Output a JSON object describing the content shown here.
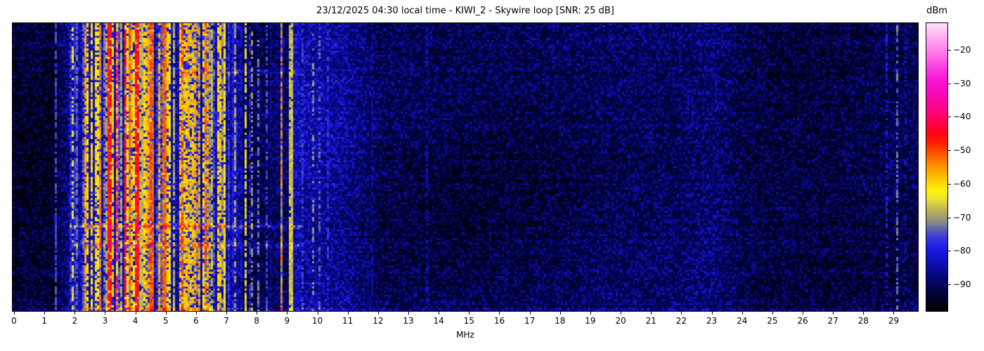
{
  "header": {
    "title": "23/12/2025 04:30 local time - KIWI_2 - Skywire loop [SNR: 25 dB]"
  },
  "x_axis": {
    "unit": "MHz",
    "ticks": [
      {
        "v": 0,
        "label": "0"
      },
      {
        "v": 1,
        "label": "1"
      },
      {
        "v": 2,
        "label": "2"
      },
      {
        "v": 3,
        "label": "3"
      },
      {
        "v": 4,
        "label": "4"
      },
      {
        "v": 5,
        "label": "5"
      },
      {
        "v": 6,
        "label": "6"
      },
      {
        "v": 7,
        "label": "7"
      },
      {
        "v": 8,
        "label": "8"
      },
      {
        "v": 9,
        "label": "9"
      },
      {
        "v": 10,
        "label": "10"
      },
      {
        "v": 11,
        "label": "11"
      },
      {
        "v": 12,
        "label": "12"
      },
      {
        "v": 13,
        "label": "13"
      },
      {
        "v": 14,
        "label": "14"
      },
      {
        "v": 15,
        "label": "15"
      },
      {
        "v": 16,
        "label": "16"
      },
      {
        "v": 17,
        "label": "17"
      },
      {
        "v": 18,
        "label": "18"
      },
      {
        "v": 19,
        "label": "19"
      },
      {
        "v": 20,
        "label": "20"
      },
      {
        "v": 21,
        "label": "21"
      },
      {
        "v": 22,
        "label": "22"
      },
      {
        "v": 23,
        "label": "23"
      },
      {
        "v": 24,
        "label": "24"
      },
      {
        "v": 25,
        "label": "25"
      },
      {
        "v": 26,
        "label": "26"
      },
      {
        "v": 27,
        "label": "27"
      },
      {
        "v": 28,
        "label": "28"
      },
      {
        "v": 29,
        "label": "29"
      }
    ]
  },
  "colorbar": {
    "unit": "dBm",
    "vtop": -12,
    "vbottom": -98,
    "ticks": [
      {
        "v": -20,
        "label": "−20"
      },
      {
        "v": -30,
        "label": "−30"
      },
      {
        "v": -40,
        "label": "−40"
      },
      {
        "v": -50,
        "label": "−50"
      },
      {
        "v": -60,
        "label": "−60"
      },
      {
        "v": -70,
        "label": "−70"
      },
      {
        "v": -80,
        "label": "−80"
      },
      {
        "v": -90,
        "label": "−90"
      }
    ]
  },
  "chart_data": {
    "type": "heatmap",
    "subtype": "hf-spectrogram-waterfall",
    "title": "23/12/2025 04:30 local time - KIWI_2 - Skywire loop [SNR: 25 dB]",
    "xlabel": "MHz",
    "value_label": "dBm",
    "x_range_mhz": [
      0,
      29.8
    ],
    "value_range_dbm": [
      -98,
      -12
    ],
    "time_axis": "vertical-unlabeled",
    "seed": 1234,
    "colormap_stops": [
      [
        -98,
        "#000000"
      ],
      [
        -94,
        "#01012c"
      ],
      [
        -90,
        "#04045c"
      ],
      [
        -86,
        "#0a0a94"
      ],
      [
        -82,
        "#1212ca"
      ],
      [
        -79,
        "#1d1de8"
      ],
      [
        -76,
        "#3b3bdc"
      ],
      [
        -73.5,
        "#6161b0"
      ],
      [
        -71.5,
        "#8a8a8a"
      ],
      [
        -69.5,
        "#a6a16a"
      ],
      [
        -67,
        "#c9be4c"
      ],
      [
        -64.5,
        "#ece435"
      ],
      [
        -62,
        "#fdf407"
      ],
      [
        -60,
        "#ffd802"
      ],
      [
        -57,
        "#ffb201"
      ],
      [
        -54,
        "#ff8500"
      ],
      [
        -51,
        "#ff5600"
      ],
      [
        -48,
        "#ff2200"
      ],
      [
        -45,
        "#ff0318"
      ],
      [
        -41,
        "#ff0256"
      ],
      [
        -37,
        "#fc038e"
      ],
      [
        -33,
        "#f907b8"
      ],
      [
        -29,
        "#f815d3"
      ],
      [
        -25,
        "#fa40e0"
      ],
      [
        -21,
        "#ff75ea"
      ],
      [
        -16,
        "#ffaef2"
      ],
      [
        -12,
        "#ffe2fb"
      ]
    ],
    "noise_floor_profile": [
      [
        0,
        -94.5
      ],
      [
        1.3,
        -94.5
      ],
      [
        1.45,
        -92
      ],
      [
        1.8,
        -88
      ],
      [
        2.0,
        -85.5
      ],
      [
        2.6,
        -83.5
      ],
      [
        7.4,
        -83.5
      ],
      [
        7.52,
        -91
      ],
      [
        8.62,
        -90.5
      ],
      [
        9.15,
        -90.5
      ],
      [
        9.25,
        -84
      ],
      [
        9.6,
        -85.5
      ],
      [
        10.4,
        -86.5
      ],
      [
        11.2,
        -88.5
      ],
      [
        12.0,
        -92
      ],
      [
        22.0,
        -92.4
      ],
      [
        29.77,
        -92.2
      ]
    ],
    "quiet_band_bump": {
      "center_mhz": 22.9,
      "boost_db": 2.3,
      "sigma_mhz": 0.55
    },
    "bands": [
      {
        "f0": 1.33,
        "f1": 1.52,
        "p": 0.35,
        "lmin": -80,
        "lmax": -74,
        "dash": 0.3
      },
      {
        "f0": 1.8,
        "f1": 2.12,
        "p": 0.55,
        "lmin": -79,
        "lmax": -62,
        "dash": 0.3
      },
      {
        "f0": 2.2,
        "f1": 2.6,
        "p": 0.55,
        "lmin": -79,
        "lmax": -60,
        "dash": 0.3
      },
      {
        "f0": 2.6,
        "f1": 5.15,
        "p": 0.78,
        "lmin": -77,
        "lmax": -51,
        "dash": 0.25
      },
      {
        "f0": 5.15,
        "f1": 6.45,
        "p": 0.68,
        "lmin": -78,
        "lmax": -55,
        "dash": 0.3
      },
      {
        "f0": 6.45,
        "f1": 7.12,
        "p": 0.62,
        "lmin": -78,
        "lmax": -58,
        "dash": 0.3
      },
      {
        "f0": 7.12,
        "f1": 7.5,
        "p": 0.5,
        "lmin": -83,
        "lmax": -69,
        "dash": 0.35
      },
      {
        "f0": 7.55,
        "f1": 8.6,
        "p": 0.17,
        "lmin": -87,
        "lmax": -75,
        "dash": 0.5
      },
      {
        "f0": 8.62,
        "f1": 9.2,
        "p": 0.15,
        "lmin": -87,
        "lmax": -78,
        "dash": 0.5
      },
      {
        "f0": 9.25,
        "f1": 10.35,
        "p": 0.12,
        "lmin": -81,
        "lmax": -73,
        "dash": 0.55
      }
    ],
    "stations": [
      {
        "f": 1.87,
        "level": -65,
        "dash": 0.45,
        "w": 1
      },
      {
        "f": 2.3,
        "level": -56,
        "dash": 0.2,
        "w": 1
      },
      {
        "f": 2.37,
        "level": -61,
        "dash": 0.3,
        "w": 1
      },
      {
        "f": 3.08,
        "level": -47,
        "dash": 0.12,
        "w": 1
      },
      {
        "f": 3.17,
        "level": -44,
        "dash": 0.18,
        "w": 1
      },
      {
        "f": 3.35,
        "level": -37,
        "dash": 0.6,
        "w": 1
      },
      {
        "f": 3.62,
        "level": -47,
        "dash": 0.2,
        "w": 1
      },
      {
        "f": 3.79,
        "level": -51,
        "dash": 0.3,
        "w": 1
      },
      {
        "f": 3.97,
        "level": -46,
        "dash": 0.12,
        "w": 2
      },
      {
        "f": 4.15,
        "level": -68,
        "dash": 0.1,
        "w": 2
      },
      {
        "f": 4.32,
        "level": -58,
        "dash": 0.25,
        "w": 1
      },
      {
        "f": 4.47,
        "level": -50,
        "dash": 0.3,
        "w": 1
      },
      {
        "f": 4.78,
        "level": -57,
        "dash": 0.35,
        "w": 1
      },
      {
        "f": 5.0,
        "level": -60,
        "dash": 0.3,
        "w": 1
      },
      {
        "f": 5.51,
        "level": -49,
        "dash": 0.5,
        "w": 1
      },
      {
        "f": 5.85,
        "level": -58,
        "dash": 0.3,
        "w": 1
      },
      {
        "f": 6.1,
        "level": -56,
        "dash": 0.35,
        "w": 1
      },
      {
        "f": 6.3,
        "level": -50,
        "dash": 0.5,
        "w": 1
      },
      {
        "f": 6.68,
        "level": -60,
        "dash": 0.3,
        "w": 1
      },
      {
        "f": 6.92,
        "level": -63,
        "dash": 0.15,
        "w": 1
      },
      {
        "f": 7.25,
        "level": -70,
        "dash": 0.4,
        "w": 1
      },
      {
        "f": 7.62,
        "level": -66,
        "dash": 0.3,
        "w": 1
      },
      {
        "f": 7.78,
        "level": -71,
        "dash": 0.4,
        "w": 1
      },
      {
        "f": 8.0,
        "level": -72,
        "dash": 0.45,
        "w": 1
      },
      {
        "f": 8.8,
        "level": -53,
        "dash": 0.6,
        "w": 1
      },
      {
        "f": 9.03,
        "level": -67,
        "dash": 0.05,
        "w": 2
      },
      {
        "f": 9.45,
        "level": -76,
        "dash": 0.5,
        "w": 1
      },
      {
        "f": 9.8,
        "level": -71,
        "dash": 0.65,
        "w": 1
      },
      {
        "f": 11.8,
        "level": -85,
        "dash": 0.5,
        "w": 1
      },
      {
        "f": 13.6,
        "level": -83,
        "dash": 0.55,
        "w": 1
      },
      {
        "f": 16.2,
        "level": -88,
        "dash": 0.5,
        "w": 1
      },
      {
        "f": 28.7,
        "level": -80,
        "dash": 0.55,
        "w": 1
      },
      {
        "f": 29.05,
        "level": -73,
        "dash": 0.45,
        "w": 1
      },
      {
        "f": 29.35,
        "level": -83,
        "dash": 0.6,
        "w": 1
      }
    ],
    "bursts": [
      {
        "y_frac": 0.7,
        "f0": 1.8,
        "f1": 9.45,
        "boost": 13
      },
      {
        "y_frac": 0.765,
        "f0": 1.9,
        "f1": 9.45,
        "boost": 10
      },
      {
        "y_frac": 0.165,
        "f0": 5.3,
        "f1": 9.4,
        "boost": 8
      }
    ]
  }
}
